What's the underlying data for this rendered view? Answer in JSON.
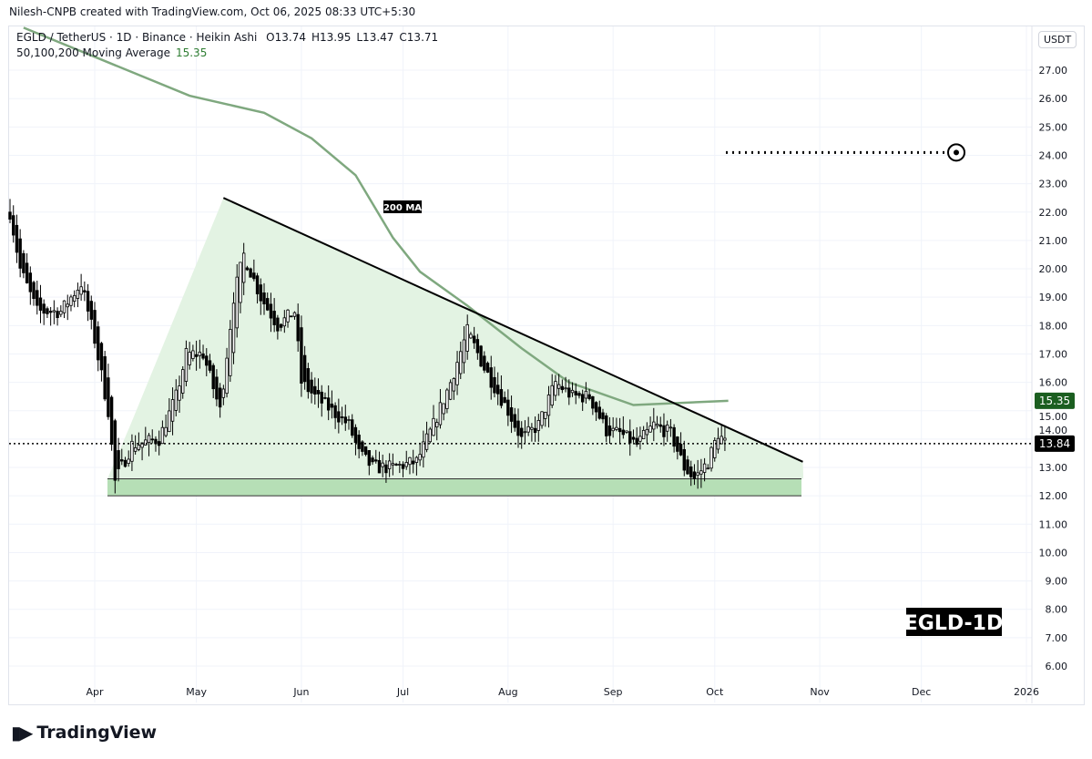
{
  "header": {
    "credit": "Nilesh-CNPB created with TradingView.com, Oct 06, 2025 08:33 UTC+5:30",
    "symbol": "EGLD / TetherUS · 1D · Binance · Heikin Ashi",
    "open": "O13.74",
    "high": "H13.95",
    "low": "L13.47",
    "close": "C13.71",
    "indicator": "50,100,200 Moving Average",
    "indicator_value": "15.35",
    "currency": "USDT"
  },
  "brand": "TradingView",
  "chart_data": {
    "type": "candlestick",
    "title": "EGLD-1D",
    "ylim": [
      6,
      27
    ],
    "yticks": [
      "27.00",
      "26.00",
      "25.00",
      "24.00",
      "23.00",
      "22.00",
      "21.00",
      "20.00",
      "19.00",
      "18.00",
      "17.00",
      "16.00",
      "15.00",
      "14.00",
      "13.00",
      "12.00",
      "11.00",
      "10.00",
      "9.00",
      "8.00",
      "7.00",
      "6.00"
    ],
    "xticks": [
      "Apr",
      "May",
      "Jun",
      "Jul",
      "Aug",
      "Sep",
      "Oct",
      "Nov",
      "Dec",
      "2026"
    ],
    "price_label": "13.84",
    "ma_label": "15.35",
    "ma_annotation": "200 MA",
    "colors": {
      "up": "#000000",
      "down": "#000000",
      "ma": "#7fa87f",
      "triangle": "#e3f3e3",
      "support": "#b6dfb6",
      "ma_badge": "#1b5e20"
    },
    "approx_closes": [
      [
        "2025-03-07",
        22.0
      ],
      [
        "2025-03-10",
        20.0
      ],
      [
        "2025-03-15",
        18.5
      ],
      [
        "2025-03-22",
        18.5
      ],
      [
        "2025-03-28",
        19.5
      ],
      [
        "2025-04-01",
        17.5
      ],
      [
        "2025-04-05",
        15.0
      ],
      [
        "2025-04-07",
        12.5
      ],
      [
        "2025-04-12",
        13.8
      ],
      [
        "2025-04-20",
        14.0
      ],
      [
        "2025-04-25",
        15.5
      ],
      [
        "2025-04-28",
        17.0
      ],
      [
        "2025-05-03",
        17.0
      ],
      [
        "2025-05-08",
        15.0
      ],
      [
        "2025-05-12",
        19.0
      ],
      [
        "2025-05-15",
        20.5
      ],
      [
        "2025-05-20",
        19.0
      ],
      [
        "2025-05-25",
        18.0
      ],
      [
        "2025-05-30",
        18.5
      ],
      [
        "2025-06-01",
        16.0
      ],
      [
        "2025-06-05",
        15.5
      ],
      [
        "2025-06-10",
        15.0
      ],
      [
        "2025-06-15",
        14.5
      ],
      [
        "2025-06-18",
        13.5
      ],
      [
        "2025-06-22",
        13.0
      ],
      [
        "2025-06-28",
        13.0
      ],
      [
        "2025-07-05",
        13.2
      ],
      [
        "2025-07-10",
        14.5
      ],
      [
        "2025-07-15",
        16.0
      ],
      [
        "2025-07-20",
        17.8
      ],
      [
        "2025-07-25",
        16.5
      ],
      [
        "2025-08-01",
        15.0
      ],
      [
        "2025-08-05",
        14.0
      ],
      [
        "2025-08-10",
        14.5
      ],
      [
        "2025-08-15",
        16.0
      ],
      [
        "2025-08-20",
        15.5
      ],
      [
        "2025-08-25",
        15.5
      ],
      [
        "2025-08-30",
        14.3
      ],
      [
        "2025-09-03",
        14.2
      ],
      [
        "2025-09-08",
        13.8
      ],
      [
        "2025-09-13",
        14.5
      ],
      [
        "2025-09-18",
        14.2
      ],
      [
        "2025-09-22",
        13.0
      ],
      [
        "2025-09-25",
        12.6
      ],
      [
        "2025-09-29",
        13.2
      ],
      [
        "2025-10-02",
        14.2
      ],
      [
        "2025-10-05",
        13.7
      ]
    ],
    "ma200": [
      [
        "2025-03-11",
        28.5
      ],
      [
        "2025-04-29",
        26.1
      ],
      [
        "2025-05-10",
        25.8
      ],
      [
        "2025-05-21",
        25.5
      ],
      [
        "2025-06-04",
        24.6
      ],
      [
        "2025-06-17",
        23.3
      ],
      [
        "2025-06-28",
        21.1
      ],
      [
        "2025-07-06",
        19.9
      ],
      [
        "2025-07-20",
        18.7
      ],
      [
        "2025-08-05",
        17.2
      ],
      [
        "2025-08-19",
        16.0
      ],
      [
        "2025-09-07",
        15.2
      ],
      [
        "2025-10-05",
        15.35
      ]
    ],
    "trendline": [
      [
        "2025-05-09",
        22.5
      ],
      [
        "2025-10-27",
        13.2
      ]
    ],
    "support_zone": [
      12.0,
      12.6
    ],
    "target": 24.1
  }
}
